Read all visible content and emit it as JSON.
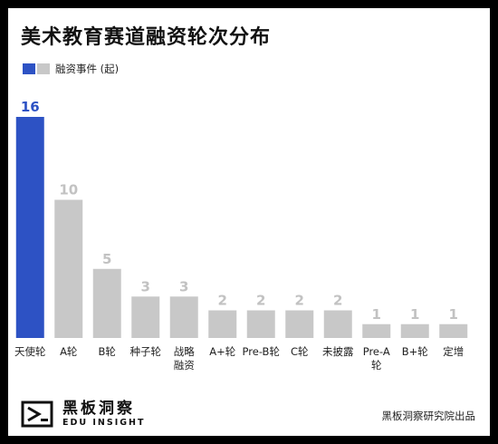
{
  "title": "美术教育赛道融资轮次分布",
  "legend": {
    "label": "融资事件 (起)"
  },
  "colors": {
    "highlight": "#2d52c4",
    "bar": "#c8c8c8",
    "label_default": "#c2c2c2",
    "label_highlight": "#2d52c4"
  },
  "chart_data": {
    "type": "bar",
    "categories": [
      [
        "天使轮"
      ],
      [
        "A轮"
      ],
      [
        "B轮"
      ],
      [
        "种子轮"
      ],
      [
        "战略",
        "融资"
      ],
      [
        "A+轮"
      ],
      [
        "Pre-B轮"
      ],
      [
        "C轮"
      ],
      [
        "未披露"
      ],
      [
        "Pre-A",
        "轮"
      ],
      [
        "B+轮"
      ],
      [
        "定增"
      ]
    ],
    "values": [
      16,
      10,
      5,
      3,
      3,
      2,
      2,
      2,
      2,
      1,
      1,
      1
    ],
    "highlight_index": 0,
    "series": [
      {
        "name": "融资事件 (起)",
        "values": [
          16,
          10,
          5,
          3,
          3,
          2,
          2,
          2,
          2,
          1,
          1,
          1
        ]
      }
    ],
    "ylim": [
      0,
      16
    ]
  },
  "footer": {
    "logo_icon": "edu-insight-logo-icon",
    "logo_cn": "黑板洞察",
    "logo_en": "EDU INSIGHT",
    "source": "黑板洞察研究院出品"
  }
}
